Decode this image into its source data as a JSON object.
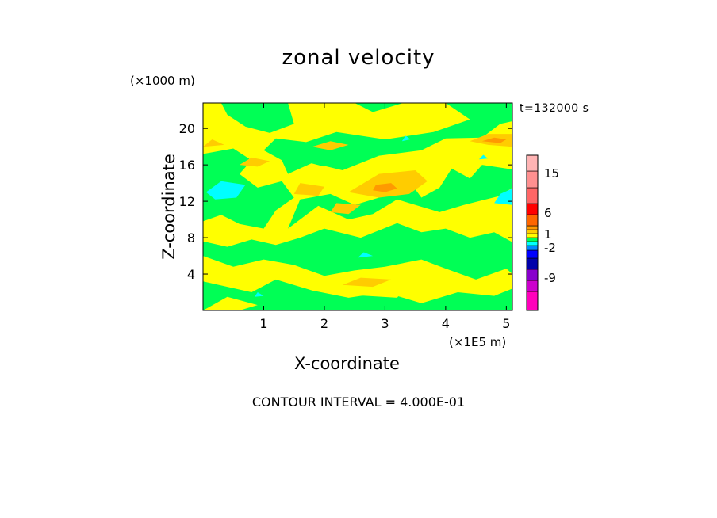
{
  "chart_data": {
    "type": "heatmap",
    "title": "zonal velocity",
    "xlabel": "X-coordinate",
    "ylabel": "Z-coordinate",
    "x_unit": "(×1E5 m)",
    "z_unit": "(×1000 m)",
    "time_label": "t=132000 s",
    "contour_text": "CONTOUR INTERVAL = 4.000E-01",
    "x_ticks": [
      "1",
      "2",
      "3",
      "4",
      "5"
    ],
    "z_ticks": [
      "4",
      "8",
      "12",
      "16",
      "20"
    ],
    "xlim": [
      0,
      5.1
    ],
    "zlim": [
      0,
      22.8
    ],
    "colorbar_labels": [
      "15",
      "6",
      "1",
      "-2",
      "-9"
    ],
    "colors": {
      "yellow": "#ffff00",
      "green": "#00ff55",
      "light_orange": "#ffcc00",
      "orange": "#ff9900",
      "cyan": "#00ffff",
      "dark_orange": "#ff6600",
      "red": "#ff0000",
      "salmon": "#ff8080",
      "pink": "#ffb4b4",
      "blue": "#0000ff",
      "dark_blue": "#0000aa",
      "purple": "#8800cc",
      "magenta": "#cc00cc",
      "hot_pink": "#ff00bb"
    },
    "colorbar_colors": [
      "#ff00bb",
      "#cc00cc",
      "#8800cc",
      "#0000aa",
      "#0000ff",
      "#0088ff",
      "#00ffff",
      "#00ff55",
      "#ffff00",
      "#ffcc00",
      "#ff9900",
      "#ff6600",
      "#ff0000",
      "#ff6666",
      "#ff9090",
      "#ffb4b4"
    ]
  }
}
